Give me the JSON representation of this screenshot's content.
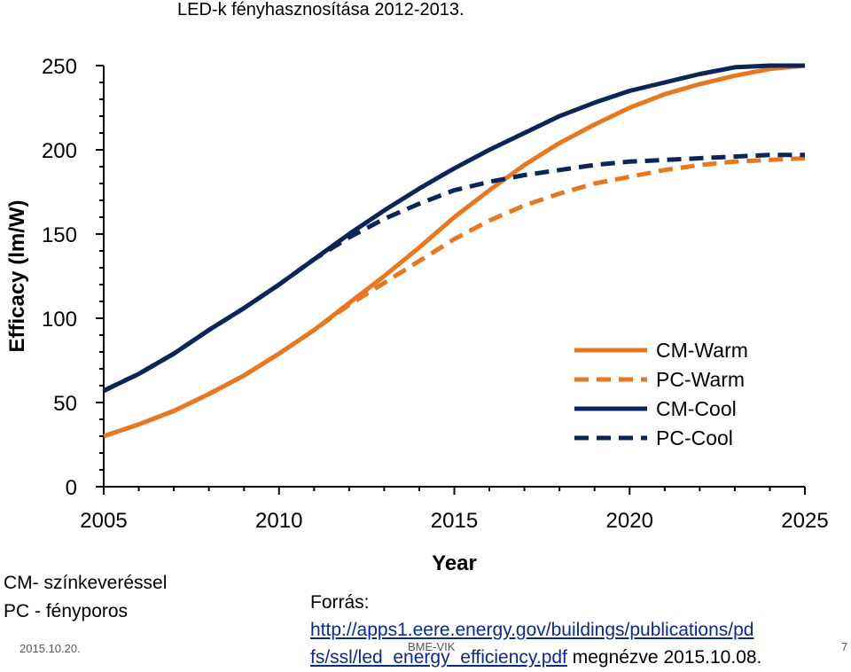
{
  "slide": {
    "title": "LED-k fényhasznosítása 2012-2013.",
    "note_line1": "CM- színkeveréssel",
    "note_line2": "PC - fényporos",
    "source_label": "Forrás:",
    "source_url_part1": "http://apps1.eere.energy.gov/buildings/publications/pd",
    "source_url_part2": "fs/ssl/led_energy_efficiency.pdf",
    "source_viewed": " megnézve 2015.10.08.",
    "date": "2015.10.20.",
    "footer": "BME-VIK",
    "page": "7"
  },
  "colors": {
    "warm": "#e87722",
    "cool": "#0b2559"
  },
  "chart_data": {
    "type": "line",
    "title": "",
    "xlabel": "Year",
    "ylabel": "Efficacy (lm/W)",
    "xlim": [
      2005,
      2025
    ],
    "ylim": [
      0,
      250
    ],
    "xticks": [
      2005,
      2010,
      2015,
      2020,
      2025
    ],
    "yticks": [
      0,
      50,
      100,
      150,
      200,
      250
    ],
    "legend_position": "bottom-right",
    "x": [
      2005,
      2006,
      2007,
      2008,
      2009,
      2010,
      2011,
      2012,
      2013,
      2014,
      2015,
      2016,
      2017,
      2018,
      2019,
      2020,
      2021,
      2022,
      2023,
      2024,
      2025
    ],
    "series": [
      {
        "name": "CM-Warm",
        "color": "warm",
        "dash": "solid",
        "values": [
          30,
          37,
          45,
          55,
          66,
          79,
          93,
          109,
          125,
          142,
          160,
          176,
          191,
          204,
          215,
          225,
          233,
          239,
          244,
          248,
          250
        ]
      },
      {
        "name": "PC-Warm",
        "color": "warm",
        "dash": "dashed",
        "values": [
          30,
          37,
          45,
          55,
          66,
          79,
          93,
          108,
          121,
          134,
          147,
          158,
          167,
          174,
          180,
          184,
          188,
          191,
          193,
          194,
          195
        ]
      },
      {
        "name": "CM-Cool",
        "color": "cool",
        "dash": "solid",
        "values": [
          57,
          67,
          79,
          93,
          106,
          120,
          135,
          150,
          164,
          177,
          189,
          200,
          210,
          220,
          228,
          235,
          240,
          245,
          249,
          250,
          250
        ]
      },
      {
        "name": "PC-Cool",
        "color": "cool",
        "dash": "dashed",
        "values": [
          57,
          67,
          79,
          93,
          106,
          120,
          135,
          148,
          159,
          168,
          176,
          181,
          185,
          188,
          191,
          193,
          194,
          195,
          196,
          197,
          197
        ]
      }
    ]
  }
}
